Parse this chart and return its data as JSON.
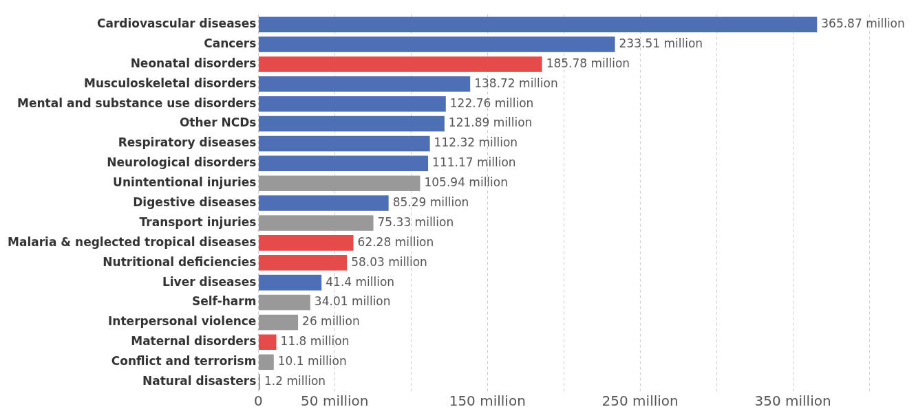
{
  "chart_data": {
    "type": "bar",
    "orientation": "horizontal",
    "categories": [
      "Cardiovascular diseases",
      "Cancers",
      "Neonatal disorders",
      "Musculoskeletal disorders",
      "Mental and substance use disorders",
      "Other NCDs",
      "Respiratory diseases",
      "Neurological disorders",
      "Unintentional injuries",
      "Digestive diseases",
      "Transport injuries",
      "Malaria & neglected tropical diseases",
      "Nutritional deficiencies",
      "Liver diseases",
      "Self-harm",
      "Interpersonal violence",
      "Maternal disorders",
      "Conflict and terrorism",
      "Natural disasters"
    ],
    "values": [
      365.87,
      233.51,
      185.78,
      138.72,
      122.76,
      121.89,
      112.32,
      111.17,
      105.94,
      85.29,
      75.33,
      62.28,
      58.03,
      41.4,
      34.01,
      26,
      11.8,
      10.1,
      1.2
    ],
    "colors": [
      "#4c6fb5",
      "#4c6fb5",
      "#e54b4b",
      "#4c6fb5",
      "#4c6fb5",
      "#4c6fb5",
      "#4c6fb5",
      "#4c6fb5",
      "#999999",
      "#4c6fb5",
      "#999999",
      "#e54b4b",
      "#e54b4b",
      "#4c6fb5",
      "#999999",
      "#999999",
      "#e54b4b",
      "#999999",
      "#999999"
    ],
    "value_labels": [
      "365.87 million",
      "233.51 million",
      "185.78 million",
      "138.72 million",
      "122.76 million",
      "121.89 million",
      "112.32 million",
      "111.17 million",
      "105.94 million",
      "85.29 million",
      "75.33 million",
      "62.28 million",
      "58.03 million",
      "41.4 million",
      "34.01 million",
      "26 million",
      "11.8 million",
      "10.1 million",
      "1.2 million"
    ],
    "xlim": [
      0,
      400
    ],
    "xticks": [
      0,
      {
        "value": 50,
        "label": "50 million"
      },
      {
        "value": 100,
        "label": null
      },
      {
        "value": 150,
        "label": "150 million"
      },
      {
        "value": 200,
        "label": null
      },
      {
        "value": 250,
        "label": "250 million"
      },
      {
        "value": 300,
        "label": null
      },
      {
        "value": 350,
        "label": "350 million"
      },
      {
        "value": 400,
        "label": null
      }
    ],
    "grid": "x",
    "legend": false
  }
}
